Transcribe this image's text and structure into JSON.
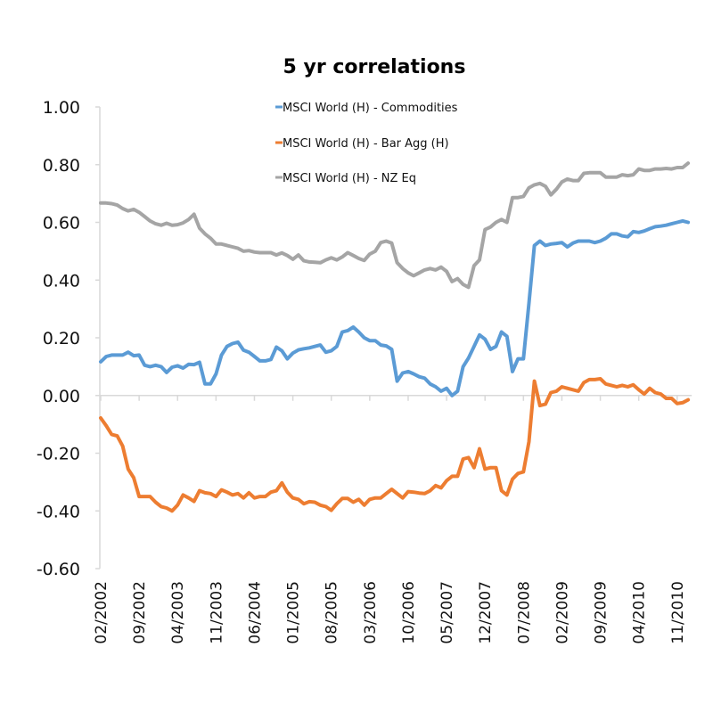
{
  "chart_data": {
    "type": "line",
    "title": "5 yr correlations",
    "xlabel": "",
    "ylabel": "",
    "ylim": [
      -0.6,
      1.0
    ],
    "yticks": [
      "1.00",
      "0.80",
      "0.60",
      "0.40",
      "0.20",
      "0.00",
      "-0.20",
      "-0.40",
      "-0.60"
    ],
    "ytick_values": [
      1.0,
      0.8,
      0.6,
      0.4,
      0.2,
      0.0,
      -0.2,
      -0.4,
      -0.6
    ],
    "xtick_labels": [
      "02/2002",
      "09/2002",
      "04/2003",
      "11/2003",
      "06/2004",
      "01/2005",
      "08/2005",
      "03/2006",
      "10/2006",
      "05/2007",
      "12/2007",
      "07/2008",
      "02/2009",
      "09/2009",
      "04/2010",
      "11/2010"
    ],
    "xtick_every_n_points": 7,
    "grid": false,
    "legend_position": "top-center",
    "x": [
      "02/2002",
      "03/2002",
      "04/2002",
      "05/2002",
      "06/2002",
      "07/2002",
      "08/2002",
      "09/2002",
      "10/2002",
      "11/2002",
      "12/2002",
      "01/2003",
      "02/2003",
      "03/2003",
      "04/2003",
      "05/2003",
      "06/2003",
      "07/2003",
      "08/2003",
      "09/2003",
      "10/2003",
      "11/2003",
      "12/2003",
      "01/2004",
      "02/2004",
      "03/2004",
      "04/2004",
      "05/2004",
      "06/2004",
      "07/2004",
      "08/2004",
      "09/2004",
      "10/2004",
      "11/2004",
      "12/2004",
      "01/2005",
      "02/2005",
      "03/2005",
      "04/2005",
      "05/2005",
      "06/2005",
      "07/2005",
      "08/2005",
      "09/2005",
      "10/2005",
      "11/2005",
      "12/2005",
      "01/2006",
      "02/2006",
      "03/2006",
      "04/2006",
      "05/2006",
      "06/2006",
      "07/2006",
      "08/2006",
      "09/2006",
      "10/2006",
      "11/2006",
      "12/2006",
      "01/2007",
      "02/2007",
      "03/2007",
      "04/2007",
      "05/2007",
      "06/2007",
      "07/2007",
      "08/2007",
      "09/2007",
      "10/2007",
      "11/2007",
      "12/2007",
      "01/2008",
      "02/2008",
      "03/2008",
      "04/2008",
      "05/2008",
      "06/2008",
      "07/2008",
      "08/2008",
      "09/2008",
      "10/2008",
      "11/2008",
      "12/2008",
      "01/2009",
      "02/2009",
      "03/2009",
      "04/2009",
      "05/2009",
      "06/2009",
      "07/2009",
      "08/2009",
      "09/2009",
      "10/2009",
      "11/2009",
      "12/2009",
      "01/2010",
      "02/2010",
      "03/2010",
      "04/2010",
      "05/2010",
      "06/2010",
      "07/2010",
      "08/2010",
      "09/2010",
      "10/2010",
      "11/2010",
      "12/2010",
      "01/2011"
    ],
    "series": [
      {
        "name": "MSCI World (H) - Commodities",
        "color": "#5b9bd5",
        "values": [
          0.117,
          0.135,
          0.14,
          0.14,
          0.14,
          0.15,
          0.138,
          0.14,
          0.105,
          0.1,
          0.105,
          0.1,
          0.08,
          0.098,
          0.103,
          0.095,
          0.108,
          0.107,
          0.115,
          0.04,
          0.04,
          0.075,
          0.14,
          0.17,
          0.18,
          0.185,
          0.157,
          0.15,
          0.135,
          0.12,
          0.12,
          0.125,
          0.168,
          0.155,
          0.127,
          0.147,
          0.158,
          0.162,
          0.165,
          0.17,
          0.175,
          0.15,
          0.155,
          0.17,
          0.22,
          0.225,
          0.237,
          0.22,
          0.2,
          0.19,
          0.19,
          0.175,
          0.172,
          0.16,
          0.05,
          0.078,
          0.083,
          0.075,
          0.065,
          0.06,
          0.04,
          0.03,
          0.015,
          0.025,
          0.0,
          0.015,
          0.1,
          0.13,
          0.17,
          0.21,
          0.195,
          0.16,
          0.17,
          0.22,
          0.205,
          0.083,
          0.127,
          0.127,
          0.32,
          0.52,
          0.535,
          0.52,
          0.525,
          0.527,
          0.53,
          0.515,
          0.528,
          0.535,
          0.535,
          0.535,
          0.53,
          0.535,
          0.545,
          0.56,
          0.56,
          0.553,
          0.55,
          0.568,
          0.565,
          0.57,
          0.578,
          0.585,
          0.587,
          0.59,
          0.595,
          0.6,
          0.605,
          0.6
        ]
      },
      {
        "name": "MSCI World (H) - Bar Agg (H)",
        "color": "#ed7d31",
        "values": [
          -0.078,
          -0.105,
          -0.135,
          -0.14,
          -0.175,
          -0.255,
          -0.285,
          -0.35,
          -0.35,
          -0.35,
          -0.37,
          -0.385,
          -0.39,
          -0.4,
          -0.38,
          -0.345,
          -0.355,
          -0.367,
          -0.33,
          -0.337,
          -0.34,
          -0.35,
          -0.327,
          -0.335,
          -0.345,
          -0.34,
          -0.355,
          -0.337,
          -0.355,
          -0.35,
          -0.35,
          -0.335,
          -0.33,
          -0.303,
          -0.335,
          -0.355,
          -0.36,
          -0.375,
          -0.368,
          -0.37,
          -0.38,
          -0.385,
          -0.398,
          -0.375,
          -0.357,
          -0.357,
          -0.37,
          -0.36,
          -0.38,
          -0.36,
          -0.355,
          -0.355,
          -0.34,
          -0.325,
          -0.34,
          -0.355,
          -0.333,
          -0.335,
          -0.338,
          -0.34,
          -0.33,
          -0.312,
          -0.32,
          -0.295,
          -0.28,
          -0.28,
          -0.22,
          -0.215,
          -0.25,
          -0.185,
          -0.255,
          -0.25,
          -0.25,
          -0.33,
          -0.345,
          -0.29,
          -0.27,
          -0.265,
          -0.16,
          0.05,
          -0.035,
          -0.03,
          0.01,
          0.015,
          0.03,
          0.025,
          0.02,
          0.015,
          0.045,
          0.055,
          0.055,
          0.058,
          0.04,
          0.035,
          0.03,
          0.035,
          0.03,
          0.037,
          0.02,
          0.005,
          0.025,
          0.01,
          0.005,
          -0.01,
          -0.01,
          -0.028,
          -0.025,
          -0.015
        ]
      },
      {
        "name": "MSCI World (H) - NZ Eq",
        "color": "#a5a5a5",
        "values": [
          0.667,
          0.667,
          0.665,
          0.66,
          0.648,
          0.64,
          0.645,
          0.635,
          0.62,
          0.605,
          0.595,
          0.59,
          0.597,
          0.59,
          0.592,
          0.598,
          0.61,
          0.628,
          0.58,
          0.56,
          0.545,
          0.525,
          0.525,
          0.52,
          0.515,
          0.51,
          0.5,
          0.502,
          0.497,
          0.495,
          0.495,
          0.495,
          0.487,
          0.494,
          0.485,
          0.472,
          0.487,
          0.467,
          0.463,
          0.462,
          0.46,
          0.47,
          0.477,
          0.47,
          0.48,
          0.495,
          0.485,
          0.475,
          0.468,
          0.49,
          0.5,
          0.53,
          0.535,
          0.528,
          0.46,
          0.44,
          0.425,
          0.415,
          0.425,
          0.435,
          0.44,
          0.435,
          0.445,
          0.43,
          0.395,
          0.405,
          0.385,
          0.375,
          0.45,
          0.47,
          0.575,
          0.584,
          0.6,
          0.61,
          0.6,
          0.686,
          0.686,
          0.69,
          0.72,
          0.73,
          0.735,
          0.725,
          0.695,
          0.715,
          0.74,
          0.75,
          0.745,
          0.745,
          0.77,
          0.772,
          0.772,
          0.772,
          0.757,
          0.757,
          0.757,
          0.765,
          0.762,
          0.765,
          0.785,
          0.78,
          0.78,
          0.785,
          0.785,
          0.787,
          0.785,
          0.79,
          0.79,
          0.805
        ]
      }
    ]
  },
  "axis_color": "#d9d9d9"
}
